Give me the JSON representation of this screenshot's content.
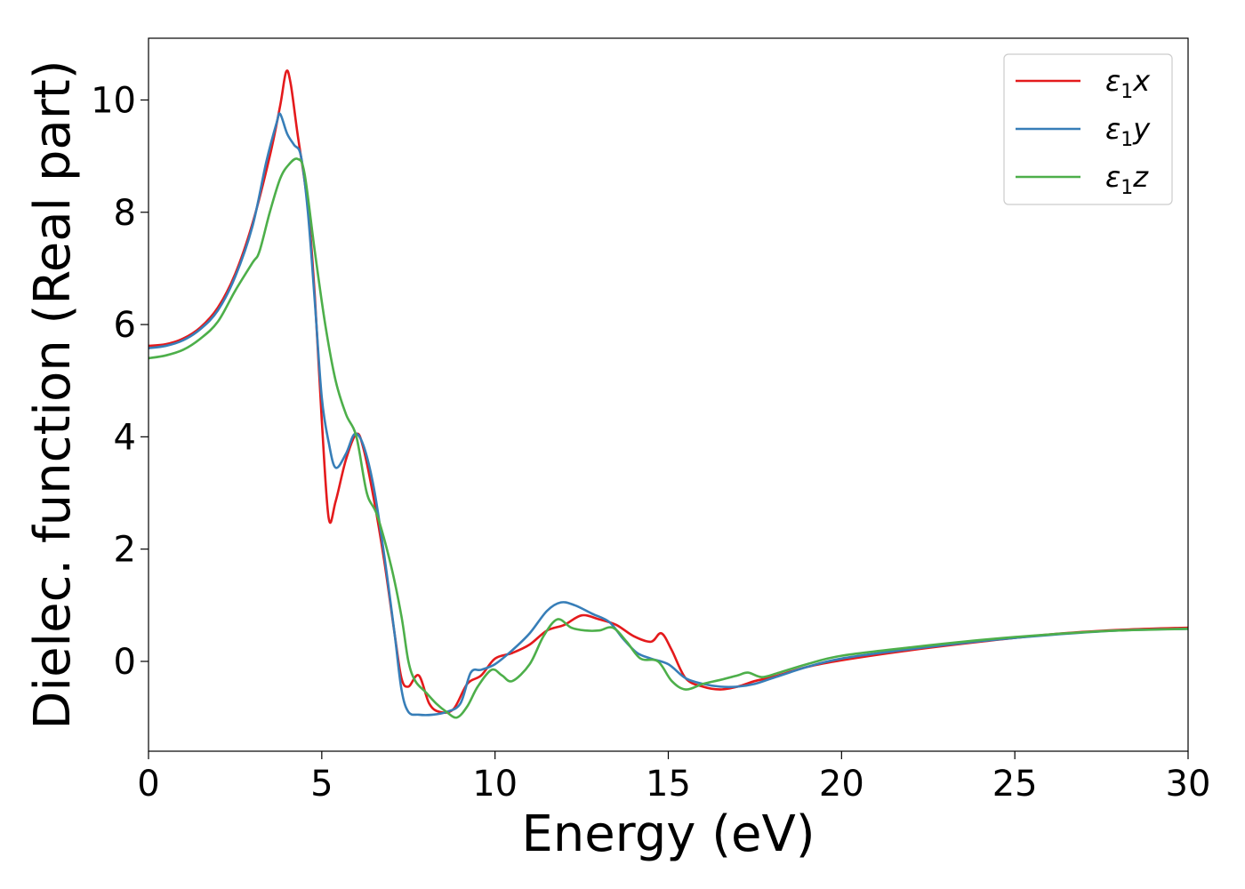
{
  "chart_data": {
    "type": "line",
    "xlabel": "Energy (eV)",
    "ylabel": "Dielec. function (Real part)",
    "xlim": [
      0,
      30
    ],
    "ylim": [
      -1.6,
      11.1
    ],
    "xticks": [
      0,
      5,
      10,
      15,
      20,
      25,
      30
    ],
    "yticks": [
      0,
      2,
      4,
      6,
      8,
      10
    ],
    "grid": false,
    "legend_position": "top-right",
    "series": [
      {
        "name": "ε1x",
        "label_base": "ε",
        "label_sub": "1",
        "label_var": "x",
        "color": "#e41a1c",
        "points": [
          [
            0,
            5.62
          ],
          [
            0.5,
            5.65
          ],
          [
            1,
            5.75
          ],
          [
            1.5,
            5.95
          ],
          [
            2,
            6.3
          ],
          [
            2.5,
            6.9
          ],
          [
            3,
            7.8
          ],
          [
            3.5,
            9.0
          ],
          [
            3.8,
            9.9
          ],
          [
            3.97,
            10.5
          ],
          [
            4.1,
            10.3
          ],
          [
            4.3,
            9.4
          ],
          [
            4.6,
            8.1
          ],
          [
            4.8,
            6.5
          ],
          [
            5.0,
            4.3
          ],
          [
            5.2,
            2.55
          ],
          [
            5.4,
            2.85
          ],
          [
            5.7,
            3.6
          ],
          [
            6.0,
            4.05
          ],
          [
            6.2,
            3.8
          ],
          [
            6.5,
            2.9
          ],
          [
            6.8,
            1.8
          ],
          [
            7.1,
            0.5
          ],
          [
            7.3,
            -0.3
          ],
          [
            7.5,
            -0.45
          ],
          [
            7.8,
            -0.25
          ],
          [
            8.1,
            -0.75
          ],
          [
            8.4,
            -0.9
          ],
          [
            8.8,
            -0.85
          ],
          [
            9.2,
            -0.4
          ],
          [
            9.6,
            -0.25
          ],
          [
            10,
            0.05
          ],
          [
            10.5,
            0.15
          ],
          [
            11,
            0.3
          ],
          [
            11.5,
            0.55
          ],
          [
            12,
            0.65
          ],
          [
            12.5,
            0.82
          ],
          [
            13,
            0.75
          ],
          [
            13.5,
            0.65
          ],
          [
            14,
            0.45
          ],
          [
            14.5,
            0.35
          ],
          [
            14.8,
            0.5
          ],
          [
            15.1,
            0.2
          ],
          [
            15.5,
            -0.3
          ],
          [
            16,
            -0.45
          ],
          [
            16.5,
            -0.5
          ],
          [
            17,
            -0.45
          ],
          [
            17.5,
            -0.35
          ],
          [
            18,
            -0.28
          ],
          [
            19,
            -0.1
          ],
          [
            20,
            0.02
          ],
          [
            22,
            0.2
          ],
          [
            24,
            0.35
          ],
          [
            26,
            0.48
          ],
          [
            28,
            0.56
          ],
          [
            30,
            0.6
          ]
        ]
      },
      {
        "name": "ε1y",
        "label_base": "ε",
        "label_sub": "1",
        "label_var": "y",
        "color": "#377eb8",
        "points": [
          [
            0,
            5.58
          ],
          [
            0.5,
            5.62
          ],
          [
            1,
            5.72
          ],
          [
            1.5,
            5.92
          ],
          [
            2,
            6.25
          ],
          [
            2.5,
            6.85
          ],
          [
            3,
            7.75
          ],
          [
            3.4,
            8.9
          ],
          [
            3.7,
            9.6
          ],
          [
            3.8,
            9.75
          ],
          [
            4.0,
            9.4
          ],
          [
            4.2,
            9.2
          ],
          [
            4.4,
            9.0
          ],
          [
            4.6,
            8.0
          ],
          [
            4.8,
            6.4
          ],
          [
            5.0,
            4.7
          ],
          [
            5.2,
            3.9
          ],
          [
            5.4,
            3.45
          ],
          [
            5.7,
            3.7
          ],
          [
            5.95,
            4.05
          ],
          [
            6.2,
            3.85
          ],
          [
            6.5,
            3.1
          ],
          [
            6.8,
            1.9
          ],
          [
            7.1,
            0.5
          ],
          [
            7.3,
            -0.5
          ],
          [
            7.5,
            -0.9
          ],
          [
            7.8,
            -0.95
          ],
          [
            8.2,
            -0.95
          ],
          [
            8.6,
            -0.9
          ],
          [
            9.0,
            -0.75
          ],
          [
            9.3,
            -0.2
          ],
          [
            9.6,
            -0.15
          ],
          [
            10,
            -0.05
          ],
          [
            10.5,
            0.2
          ],
          [
            11,
            0.5
          ],
          [
            11.5,
            0.9
          ],
          [
            11.9,
            1.05
          ],
          [
            12.3,
            1.0
          ],
          [
            12.8,
            0.85
          ],
          [
            13.3,
            0.7
          ],
          [
            13.7,
            0.4
          ],
          [
            14.1,
            0.15
          ],
          [
            14.5,
            0.05
          ],
          [
            15,
            -0.05
          ],
          [
            15.5,
            -0.3
          ],
          [
            16,
            -0.4
          ],
          [
            16.5,
            -0.45
          ],
          [
            17,
            -0.45
          ],
          [
            17.5,
            -0.4
          ],
          [
            18,
            -0.3
          ],
          [
            19,
            -0.1
          ],
          [
            20,
            0.05
          ],
          [
            22,
            0.22
          ],
          [
            24,
            0.36
          ],
          [
            26,
            0.47
          ],
          [
            28,
            0.55
          ],
          [
            30,
            0.58
          ]
        ]
      },
      {
        "name": "ε1z",
        "label_base": "ε",
        "label_sub": "1",
        "label_var": "z",
        "color": "#4daf4a",
        "points": [
          [
            0,
            5.4
          ],
          [
            0.5,
            5.45
          ],
          [
            1,
            5.55
          ],
          [
            1.5,
            5.75
          ],
          [
            2,
            6.05
          ],
          [
            2.5,
            6.6
          ],
          [
            3,
            7.1
          ],
          [
            3.2,
            7.3
          ],
          [
            3.5,
            8.0
          ],
          [
            3.8,
            8.6
          ],
          [
            4.05,
            8.85
          ],
          [
            4.3,
            8.95
          ],
          [
            4.5,
            8.7
          ],
          [
            4.8,
            7.3
          ],
          [
            5.1,
            6.0
          ],
          [
            5.4,
            5.0
          ],
          [
            5.7,
            4.4
          ],
          [
            6.0,
            4.0
          ],
          [
            6.3,
            3.0
          ],
          [
            6.6,
            2.6
          ],
          [
            7.0,
            1.7
          ],
          [
            7.3,
            0.8
          ],
          [
            7.5,
            0.0
          ],
          [
            7.7,
            -0.35
          ],
          [
            8.0,
            -0.55
          ],
          [
            8.3,
            -0.75
          ],
          [
            8.6,
            -0.9
          ],
          [
            8.9,
            -1.0
          ],
          [
            9.2,
            -0.8
          ],
          [
            9.5,
            -0.45
          ],
          [
            9.9,
            -0.15
          ],
          [
            10.2,
            -0.25
          ],
          [
            10.5,
            -0.35
          ],
          [
            11,
            -0.05
          ],
          [
            11.4,
            0.45
          ],
          [
            11.8,
            0.75
          ],
          [
            12.2,
            0.6
          ],
          [
            12.6,
            0.55
          ],
          [
            13,
            0.55
          ],
          [
            13.4,
            0.6
          ],
          [
            13.8,
            0.35
          ],
          [
            14.2,
            0.05
          ],
          [
            14.7,
            0.0
          ],
          [
            15.1,
            -0.35
          ],
          [
            15.5,
            -0.5
          ],
          [
            16,
            -0.4
          ],
          [
            16.5,
            -0.33
          ],
          [
            17,
            -0.25
          ],
          [
            17.3,
            -0.2
          ],
          [
            17.7,
            -0.28
          ],
          [
            18.2,
            -0.2
          ],
          [
            19,
            -0.05
          ],
          [
            20,
            0.1
          ],
          [
            22,
            0.25
          ],
          [
            24,
            0.38
          ],
          [
            26,
            0.48
          ],
          [
            28,
            0.55
          ],
          [
            30,
            0.58
          ]
        ]
      }
    ]
  }
}
